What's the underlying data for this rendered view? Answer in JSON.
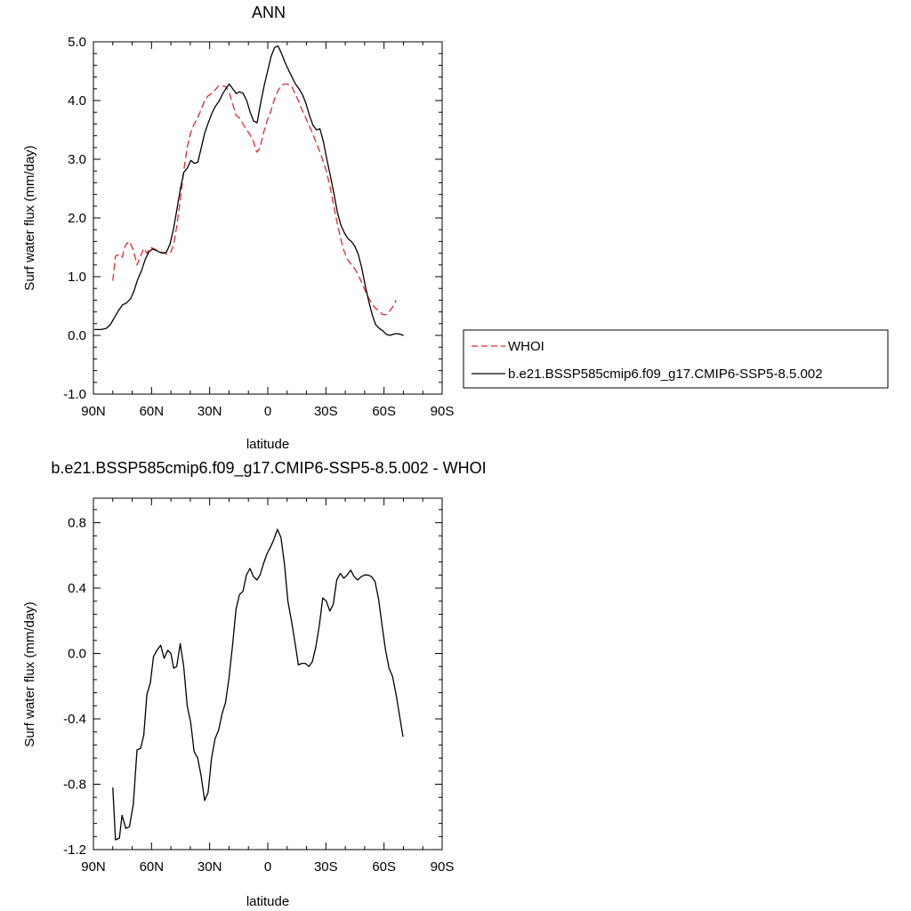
{
  "chart_data": [
    {
      "type": "line",
      "title": "ANN",
      "xlabel": "latitude",
      "ylabel": "Surf water flux (mm/day)",
      "xlim": [
        90,
        -90
      ],
      "ylim": [
        -1.0,
        5.0
      ],
      "x_ticks": [
        90,
        60,
        30,
        0,
        -30,
        -60,
        -90
      ],
      "x_tick_labels": [
        "90N",
        "60N",
        "30N",
        "0",
        "30S",
        "60S",
        "90S"
      ],
      "y_ticks": [
        -1.0,
        0.0,
        1.0,
        2.0,
        3.0,
        4.0,
        5.0
      ],
      "y_tick_labels": [
        "-1.0",
        "0.0",
        "1.0",
        "2.0",
        "3.0",
        "4.0",
        "5.0"
      ],
      "legend_position": "right",
      "series": [
        {
          "name": "WHOI",
          "color": "#e8272a",
          "dash": true,
          "points": [
            [
              80,
              0.93
            ],
            [
              78.6,
              1.35
            ],
            [
              76.6,
              1.38
            ],
            [
              75.2,
              1.33
            ],
            [
              73.3,
              1.55
            ],
            [
              71.4,
              1.6
            ],
            [
              69.4,
              1.45
            ],
            [
              67.5,
              1.2
            ],
            [
              65.6,
              1.35
            ],
            [
              64.0,
              1.48
            ],
            [
              62.4,
              1.4
            ],
            [
              60.6,
              1.5
            ],
            [
              59.0,
              1.48
            ],
            [
              57.2,
              1.45
            ],
            [
              55.3,
              1.42
            ],
            [
              53.5,
              1.4
            ],
            [
              51.6,
              1.38
            ],
            [
              50.0,
              1.42
            ],
            [
              48.6,
              1.55
            ],
            [
              47.0,
              1.85
            ],
            [
              45.2,
              2.3
            ],
            [
              43.4,
              2.8
            ],
            [
              41.6,
              3.2
            ],
            [
              39.8,
              3.45
            ],
            [
              38.0,
              3.6
            ],
            [
              36.2,
              3.7
            ],
            [
              34.4,
              3.85
            ],
            [
              32.6,
              4.0
            ],
            [
              30.8,
              4.08
            ],
            [
              29.0,
              4.12
            ],
            [
              27.2,
              4.18
            ],
            [
              25.4,
              4.25
            ],
            [
              23.6,
              4.25
            ],
            [
              21.8,
              4.24
            ],
            [
              20.0,
              4.15
            ],
            [
              18.2,
              3.95
            ],
            [
              16.4,
              3.75
            ],
            [
              14.6,
              3.7
            ],
            [
              12.8,
              3.6
            ],
            [
              11.0,
              3.5
            ],
            [
              9.2,
              3.42
            ],
            [
              7.4,
              3.3
            ],
            [
              5.6,
              3.12
            ],
            [
              4.0,
              3.2
            ],
            [
              2.2,
              3.45
            ],
            [
              0.4,
              3.65
            ],
            [
              -1.4,
              3.8
            ],
            [
              -3.2,
              4.0
            ],
            [
              -5.0,
              4.15
            ],
            [
              -6.8,
              4.25
            ],
            [
              -8.6,
              4.28
            ],
            [
              -10.4,
              4.28
            ],
            [
              -12.2,
              4.25
            ],
            [
              -14.0,
              4.12
            ],
            [
              -15.8,
              4.0
            ],
            [
              -17.6,
              3.85
            ],
            [
              -19.4,
              3.72
            ],
            [
              -21.2,
              3.58
            ],
            [
              -23.0,
              3.45
            ],
            [
              -24.8,
              3.3
            ],
            [
              -26.6,
              3.15
            ],
            [
              -28.4,
              2.98
            ],
            [
              -30.2,
              2.8
            ],
            [
              -32.0,
              2.55
            ],
            [
              -33.8,
              2.25
            ],
            [
              -35.6,
              1.95
            ],
            [
              -37.4,
              1.68
            ],
            [
              -39.2,
              1.45
            ],
            [
              -41.0,
              1.3
            ],
            [
              -42.8,
              1.22
            ],
            [
              -44.6,
              1.15
            ],
            [
              -46.4,
              1.05
            ],
            [
              -48.2,
              0.92
            ],
            [
              -50.0,
              0.78
            ],
            [
              -51.8,
              0.65
            ],
            [
              -53.6,
              0.55
            ],
            [
              -55.4,
              0.47
            ],
            [
              -57.2,
              0.42
            ],
            [
              -59.0,
              0.36
            ],
            [
              -60.8,
              0.35
            ],
            [
              -62.6,
              0.4
            ],
            [
              -64.4,
              0.48
            ],
            [
              -66.2,
              0.6
            ]
          ]
        },
        {
          "name": "b.e21.BSSP585cmip6.f09_g17.CMIP6-SSP5-8.5.002",
          "color": "#000000",
          "dash": false,
          "points": [
            [
              89.5,
              0.1
            ],
            [
              86,
              0.1
            ],
            [
              83.4,
              0.12
            ],
            [
              81.3,
              0.18
            ],
            [
              79.2,
              0.3
            ],
            [
              77.1,
              0.42
            ],
            [
              75.0,
              0.52
            ],
            [
              73.0,
              0.55
            ],
            [
              70.9,
              0.62
            ],
            [
              69.1,
              0.75
            ],
            [
              67.2,
              0.95
            ],
            [
              65.2,
              1.1
            ],
            [
              63.2,
              1.3
            ],
            [
              61.4,
              1.42
            ],
            [
              59.6,
              1.47
            ],
            [
              57.8,
              1.45
            ],
            [
              56.0,
              1.42
            ],
            [
              54.2,
              1.4
            ],
            [
              52.3,
              1.42
            ],
            [
              50.5,
              1.55
            ],
            [
              48.7,
              1.8
            ],
            [
              46.9,
              2.15
            ],
            [
              45.1,
              2.5
            ],
            [
              43.3,
              2.78
            ],
            [
              41.5,
              2.85
            ],
            [
              39.7,
              2.98
            ],
            [
              37.9,
              2.93
            ],
            [
              36.1,
              2.95
            ],
            [
              34.3,
              3.2
            ],
            [
              32.5,
              3.45
            ],
            [
              30.7,
              3.62
            ],
            [
              28.9,
              3.78
            ],
            [
              27.1,
              3.9
            ],
            [
              25.3,
              3.98
            ],
            [
              23.5,
              4.1
            ],
            [
              21.7,
              4.2
            ],
            [
              19.9,
              4.28
            ],
            [
              18.1,
              4.2
            ],
            [
              16.3,
              4.12
            ],
            [
              14.5,
              4.15
            ],
            [
              12.7,
              4.12
            ],
            [
              10.9,
              4.0
            ],
            [
              9.1,
              3.8
            ],
            [
              7.3,
              3.65
            ],
            [
              5.5,
              3.62
            ],
            [
              3.7,
              3.95
            ],
            [
              1.9,
              4.25
            ],
            [
              0.1,
              4.5
            ],
            [
              -1.7,
              4.75
            ],
            [
              -3.5,
              4.9
            ],
            [
              -5.3,
              4.93
            ],
            [
              -7.1,
              4.8
            ],
            [
              -8.9,
              4.65
            ],
            [
              -10.7,
              4.52
            ],
            [
              -12.5,
              4.4
            ],
            [
              -14.3,
              4.28
            ],
            [
              -16.1,
              4.2
            ],
            [
              -17.9,
              4.1
            ],
            [
              -19.7,
              3.95
            ],
            [
              -21.5,
              3.75
            ],
            [
              -23.3,
              3.58
            ],
            [
              -25.1,
              3.5
            ],
            [
              -26.9,
              3.52
            ],
            [
              -28.7,
              3.3
            ],
            [
              -30.5,
              3.0
            ],
            [
              -32.3,
              2.72
            ],
            [
              -34.1,
              2.42
            ],
            [
              -35.9,
              2.1
            ],
            [
              -37.7,
              1.88
            ],
            [
              -39.5,
              1.75
            ],
            [
              -41.3,
              1.65
            ],
            [
              -43.1,
              1.6
            ],
            [
              -44.9,
              1.52
            ],
            [
              -46.7,
              1.38
            ],
            [
              -48.5,
              1.15
            ],
            [
              -50.3,
              0.85
            ],
            [
              -52.1,
              0.58
            ],
            [
              -53.9,
              0.35
            ],
            [
              -55.7,
              0.18
            ],
            [
              -57.5,
              0.12
            ],
            [
              -59.3,
              0.08
            ],
            [
              -61.1,
              0.02
            ],
            [
              -62.9,
              0.0
            ],
            [
              -64.7,
              0.02
            ],
            [
              -66.5,
              0.03
            ],
            [
              -68.3,
              0.02
            ],
            [
              -70.1,
              0.0
            ]
          ]
        }
      ]
    },
    {
      "type": "line",
      "title": "b.e21.BSSP585cmip6.f09_g17.CMIP6-SSP5-8.5.002 - WHOI",
      "xlabel": "latitude",
      "ylabel": "Surf water flux (mm/day)",
      "xlim": [
        90,
        -90
      ],
      "ylim": [
        -1.2,
        0.95
      ],
      "x_ticks": [
        90,
        60,
        30,
        0,
        -30,
        -60,
        -90
      ],
      "x_tick_labels": [
        "90N",
        "60N",
        "30N",
        "0",
        "30S",
        "60S",
        "90S"
      ],
      "y_ticks": [
        -1.2,
        -0.8,
        -0.4,
        0.0,
        0.4,
        0.8
      ],
      "y_tick_labels": [
        "-1.2",
        "-0.8",
        "-0.4",
        "0.0",
        "0.4",
        "0.8"
      ],
      "series": [
        {
          "color": "#000000",
          "dash": false,
          "points": [
            [
              80,
              -0.82
            ],
            [
              78.6,
              -1.14
            ],
            [
              76.6,
              -1.13
            ],
            [
              75.2,
              -0.99
            ],
            [
              73.3,
              -1.07
            ],
            [
              71.4,
              -1.06
            ],
            [
              69.4,
              -0.92
            ],
            [
              67.5,
              -0.59
            ],
            [
              65.6,
              -0.58
            ],
            [
              64.0,
              -0.5
            ],
            [
              62.4,
              -0.25
            ],
            [
              60.6,
              -0.18
            ],
            [
              59.0,
              -0.02
            ],
            [
              57.2,
              0.02
            ],
            [
              55.3,
              0.05
            ],
            [
              53.5,
              -0.03
            ],
            [
              51.6,
              0.02
            ],
            [
              50.0,
              0.0
            ],
            [
              48.6,
              -0.09
            ],
            [
              47.0,
              -0.08
            ],
            [
              45.2,
              0.06
            ],
            [
              43.4,
              -0.08
            ],
            [
              41.6,
              -0.32
            ],
            [
              39.8,
              -0.42
            ],
            [
              38.0,
              -0.6
            ],
            [
              36.2,
              -0.64
            ],
            [
              34.4,
              -0.75
            ],
            [
              32.6,
              -0.9
            ],
            [
              30.8,
              -0.85
            ],
            [
              29.0,
              -0.64
            ],
            [
              27.2,
              -0.52
            ],
            [
              25.4,
              -0.47
            ],
            [
              23.6,
              -0.37
            ],
            [
              21.8,
              -0.3
            ],
            [
              20.0,
              -0.15
            ],
            [
              18.2,
              0.05
            ],
            [
              16.4,
              0.27
            ],
            [
              14.6,
              0.36
            ],
            [
              12.8,
              0.38
            ],
            [
              11.0,
              0.48
            ],
            [
              9.2,
              0.52
            ],
            [
              7.4,
              0.47
            ],
            [
              5.6,
              0.45
            ],
            [
              4.0,
              0.48
            ],
            [
              2.2,
              0.55
            ],
            [
              0.4,
              0.61
            ],
            [
              -1.4,
              0.65
            ],
            [
              -3.2,
              0.7
            ],
            [
              -5.0,
              0.76
            ],
            [
              -6.8,
              0.71
            ],
            [
              -8.6,
              0.55
            ],
            [
              -10.4,
              0.32
            ],
            [
              -12.2,
              0.2
            ],
            [
              -14.0,
              0.07
            ],
            [
              -15.8,
              -0.07
            ],
            [
              -17.6,
              -0.06
            ],
            [
              -19.4,
              -0.06
            ],
            [
              -21.2,
              -0.08
            ],
            [
              -23.0,
              -0.05
            ],
            [
              -24.8,
              0.04
            ],
            [
              -26.6,
              0.17
            ],
            [
              -28.4,
              0.34
            ],
            [
              -30.2,
              0.32
            ],
            [
              -32.0,
              0.26
            ],
            [
              -33.8,
              0.3
            ],
            [
              -35.6,
              0.45
            ],
            [
              -37.4,
              0.49
            ],
            [
              -39.2,
              0.46
            ],
            [
              -41.0,
              0.48
            ],
            [
              -42.8,
              0.51
            ],
            [
              -44.6,
              0.47
            ],
            [
              -46.4,
              0.45
            ],
            [
              -48.2,
              0.47
            ],
            [
              -50.0,
              0.48
            ],
            [
              -51.8,
              0.48
            ],
            [
              -53.6,
              0.47
            ],
            [
              -55.4,
              0.44
            ],
            [
              -57.2,
              0.33
            ],
            [
              -59.0,
              0.17
            ],
            [
              -60.8,
              0.02
            ],
            [
              -62.6,
              -0.09
            ],
            [
              -64.4,
              -0.14
            ],
            [
              -66.2,
              -0.25
            ],
            [
              -68.0,
              -0.38
            ],
            [
              -69.8,
              -0.51
            ]
          ]
        }
      ]
    }
  ]
}
